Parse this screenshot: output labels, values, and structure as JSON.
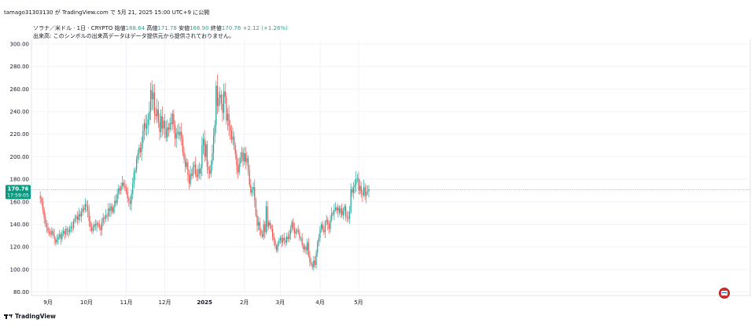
{
  "header": {
    "share_line": "tamago31303130 が TradingView.com で 5月 21, 2025 15:00 UTC+9 に公開",
    "legend_symbol": "ソラナ／米ドル · 1日 · CRYPTO",
    "legend_open_label": "始値",
    "legend_open": "168.64",
    "legend_high_label": "高値",
    "legend_high": "171.78",
    "legend_low_label": "安値",
    "legend_low": "166.90",
    "legend_close_label": "終値",
    "legend_close": "170.76",
    "legend_change": "+2.12 (+1.26%)",
    "volume_note": "出来高: このシンボルの出来高データはデータ提供元から提供されておりません。"
  },
  "footer": {
    "brand": "TradingView"
  },
  "colors": {
    "up": "#26a69a",
    "down": "#ef5350",
    "price_tag": "#089981",
    "grid": "#f0f3fa",
    "text": "#131722"
  },
  "icons": {
    "flag": "us-flag-icon",
    "brand": "tradingview-logo-icon"
  },
  "chart_data": {
    "type": "candlestick",
    "title": "",
    "xlabel": "",
    "ylabel": "",
    "ylim": [
      80,
      300
    ],
    "y_ticks": [
      "300.00",
      "280.00",
      "260.00",
      "240.00",
      "220.00",
      "200.00",
      "180.00",
      "160.00",
      "140.00",
      "120.00",
      "100.00",
      "80.00"
    ],
    "x_ticks": [
      {
        "label": "9月",
        "day": 0
      },
      {
        "label": "10月",
        "day": 30
      },
      {
        "label": "11月",
        "day": 61
      },
      {
        "label": "12月",
        "day": 91
      },
      {
        "label": "2025",
        "day": 122
      },
      {
        "label": "2月",
        "day": 153
      },
      {
        "label": "3月",
        "day": 181
      },
      {
        "label": "4月",
        "day": 212
      },
      {
        "label": "5月",
        "day": 242
      }
    ],
    "first_day_offset": -6,
    "current_price": 170.76,
    "current_price_label": "170.76",
    "countdown_label": "17:59:05",
    "grid": true,
    "closes": [
      163,
      160,
      153,
      146,
      141,
      137,
      134,
      132,
      131,
      134,
      131,
      127,
      124,
      126,
      129,
      131,
      127,
      132,
      134,
      131,
      136,
      135,
      133,
      136,
      138,
      137,
      143,
      145,
      147,
      144,
      149,
      147,
      151,
      154,
      153,
      158,
      156,
      152,
      143,
      138,
      134,
      137,
      140,
      139,
      141,
      140,
      138,
      135,
      142,
      146,
      145,
      148,
      147,
      154,
      152,
      156,
      151,
      155,
      161,
      159,
      167,
      172,
      170,
      174,
      177,
      174,
      172,
      169,
      163,
      161,
      158,
      167,
      176,
      186,
      188,
      198,
      203,
      208,
      204,
      212,
      223,
      230,
      225,
      229,
      233,
      240,
      259,
      251,
      257,
      238,
      236,
      242,
      231,
      222,
      236,
      225,
      232,
      225,
      217,
      226,
      224,
      230,
      229,
      238,
      228,
      216,
      221,
      222,
      219,
      222,
      216,
      204,
      198,
      191,
      195,
      184,
      176,
      185,
      183,
      191,
      193,
      184,
      182,
      189,
      185,
      190,
      210,
      216,
      200,
      211,
      191,
      188,
      185,
      193,
      203,
      218,
      228,
      263,
      245,
      252,
      255,
      247,
      239,
      258,
      253,
      232,
      238,
      227,
      223,
      215,
      218,
      210,
      202,
      192,
      186,
      194,
      199,
      204,
      196,
      203,
      195,
      199,
      188,
      175,
      168,
      171,
      173,
      161,
      148,
      139,
      142,
      135,
      131,
      129,
      140,
      133,
      156,
      138,
      142,
      139,
      136,
      129,
      126,
      121,
      117,
      123,
      126,
      128,
      124,
      128,
      126,
      124,
      129,
      127,
      131,
      136,
      142,
      137,
      132,
      134,
      135,
      133,
      128,
      128,
      122,
      118,
      120,
      117,
      124,
      112,
      106,
      105,
      102,
      108,
      104,
      115,
      124,
      128,
      136,
      140,
      135,
      133,
      142,
      144,
      140,
      136,
      144,
      150,
      149,
      153,
      155,
      152,
      155,
      150,
      154,
      148,
      152,
      156,
      147,
      146,
      145,
      151,
      171,
      168,
      173,
      175,
      180,
      181,
      170,
      174,
      167,
      166,
      173,
      165,
      169,
      169,
      171
    ]
  }
}
